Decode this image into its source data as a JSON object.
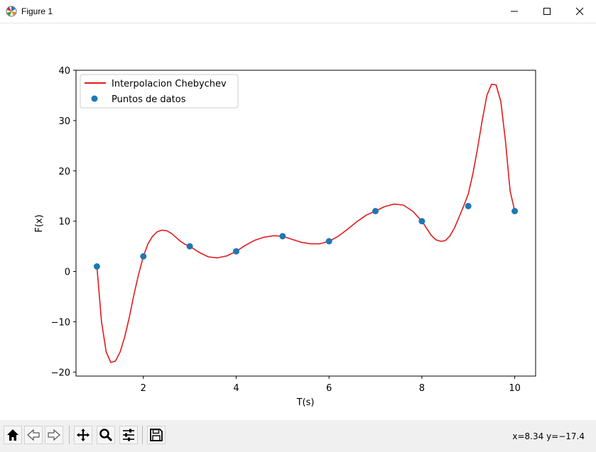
{
  "window": {
    "title": "Figure 1",
    "icons": {
      "app": "matplotlib-logo-icon",
      "minimize": "minimize-icon",
      "maximize": "maximize-icon",
      "close": "close-icon"
    }
  },
  "toolbar": {
    "buttons": [
      {
        "name": "home-button",
        "icon": "home-icon"
      },
      {
        "name": "back-button",
        "icon": "back-arrow-icon"
      },
      {
        "name": "forward-button",
        "icon": "forward-arrow-icon"
      },
      {
        "name": "pan-button",
        "icon": "move-icon"
      },
      {
        "name": "zoom-button",
        "icon": "magnifier-icon"
      },
      {
        "name": "configure-subplots-button",
        "icon": "sliders-icon"
      },
      {
        "name": "save-button",
        "icon": "floppy-disk-icon"
      }
    ],
    "coordinates": "x=8.34 y=−17.4"
  },
  "chart_data": {
    "type": "line",
    "title": "",
    "xlabel": "T(s)",
    "ylabel": "F(x)",
    "xlim": [
      0.55,
      10.45
    ],
    "ylim": [
      -20.8,
      40.0
    ],
    "xticks": [
      2,
      4,
      6,
      8,
      10
    ],
    "xtick_labels": [
      "2",
      "4",
      "6",
      "8",
      "10"
    ],
    "yticks": [
      -20,
      -10,
      0,
      10,
      20,
      30,
      40
    ],
    "ytick_labels": [
      "−20",
      "−10",
      "0",
      "10",
      "20",
      "30",
      "40"
    ],
    "grid": false,
    "legend_position": "top-left",
    "series": [
      {
        "name": "Interpolacion Chebychev",
        "kind": "line",
        "color": "#e41a1c",
        "x": [
          1.0,
          1.1,
          1.2,
          1.3,
          1.4,
          1.5,
          1.6,
          1.7,
          1.8,
          1.9,
          2.0,
          2.1,
          2.2,
          2.3,
          2.4,
          2.5,
          2.6,
          2.7,
          2.8,
          2.9,
          3.0,
          3.2,
          3.4,
          3.6,
          3.8,
          4.0,
          4.2,
          4.4,
          4.6,
          4.8,
          5.0,
          5.2,
          5.4,
          5.6,
          5.8,
          6.0,
          6.2,
          6.4,
          6.6,
          6.8,
          7.0,
          7.2,
          7.4,
          7.6,
          7.8,
          8.0,
          8.1,
          8.2,
          8.3,
          8.4,
          8.5,
          8.6,
          8.7,
          8.8,
          8.9,
          9.0,
          9.1,
          9.2,
          9.3,
          9.4,
          9.5,
          9.6,
          9.7,
          9.8,
          9.9,
          10.0
        ],
        "y": [
          1.0,
          -10.0,
          -16.0,
          -18.1,
          -17.8,
          -16.0,
          -13.0,
          -9.0,
          -4.5,
          -0.5,
          3.0,
          5.5,
          7.0,
          7.9,
          8.2,
          8.1,
          7.6,
          6.8,
          6.0,
          5.4,
          5.0,
          3.8,
          2.9,
          2.7,
          3.1,
          4.0,
          5.2,
          6.2,
          6.8,
          7.1,
          7.0,
          6.4,
          5.8,
          5.5,
          5.5,
          6.0,
          7.0,
          8.4,
          9.9,
          11.2,
          12.0,
          12.9,
          13.4,
          13.2,
          12.0,
          10.0,
          8.6,
          7.2,
          6.3,
          6.0,
          6.1,
          7.0,
          8.6,
          10.8,
          13.0,
          15.4,
          19.5,
          24.5,
          30.0,
          35.0,
          37.2,
          37.1,
          33.8,
          26.0,
          16.0,
          12.0
        ]
      },
      {
        "name": "Puntos de datos",
        "kind": "scatter",
        "color": "#1f77b4",
        "x": [
          1,
          2,
          3,
          4,
          5,
          6,
          7,
          8,
          9,
          10
        ],
        "y": [
          1,
          3,
          5,
          4,
          7,
          6,
          12,
          10,
          13,
          12
        ]
      }
    ]
  }
}
